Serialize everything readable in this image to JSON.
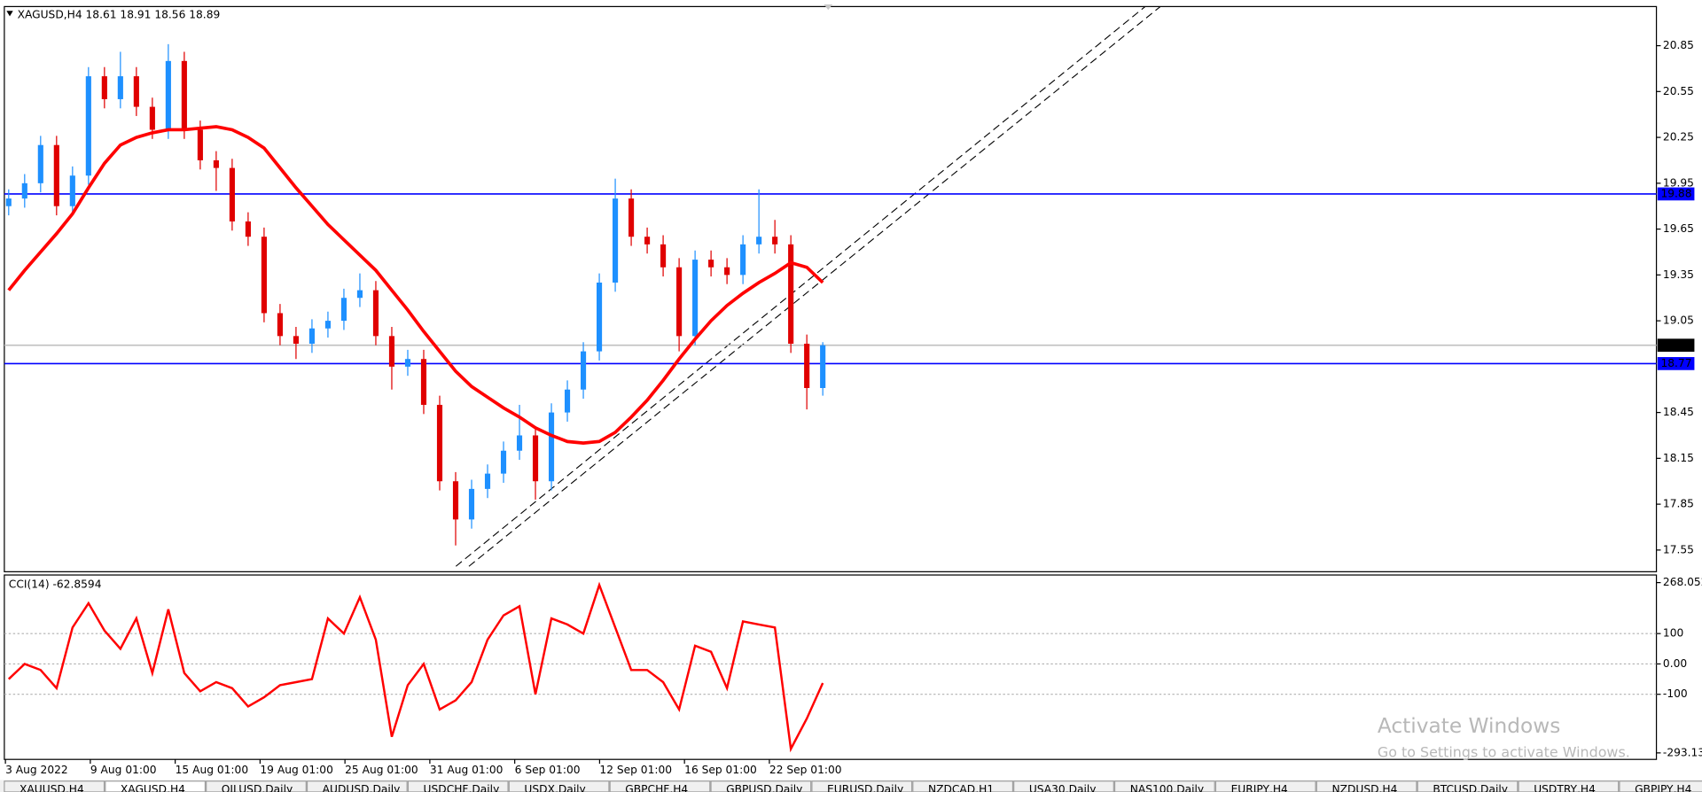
{
  "chart_data": [
    {
      "type": "candlestick",
      "title": "XAGUSD,H4  18.61 18.91 18.56 18.89",
      "open": [
        19.8,
        19.85,
        19.95,
        20.2,
        19.8,
        20.0,
        20.65,
        20.5,
        20.65,
        20.45,
        20.3,
        20.75,
        20.3,
        20.1,
        20.05,
        19.7,
        19.6,
        19.1,
        18.95,
        18.9,
        19.0,
        19.05,
        19.2,
        19.25,
        18.95,
        18.75,
        18.8,
        18.5,
        18.0,
        17.75,
        17.95,
        18.05,
        18.2,
        18.3,
        18.0,
        18.45,
        18.6,
        18.85,
        19.3,
        19.85,
        19.6,
        19.55,
        19.4,
        18.95,
        19.45,
        19.4,
        19.35,
        19.55,
        19.6,
        19.55,
        18.9,
        18.61
      ],
      "high": [
        19.91,
        20.01,
        20.26,
        20.26,
        20.06,
        20.71,
        20.71,
        20.81,
        20.71,
        20.51,
        20.86,
        20.81,
        20.36,
        20.16,
        20.11,
        19.76,
        19.66,
        19.16,
        19.01,
        19.06,
        19.11,
        19.26,
        19.36,
        19.31,
        19.01,
        18.86,
        18.86,
        18.56,
        18.06,
        18.01,
        18.11,
        18.26,
        18.5,
        18.36,
        18.51,
        18.66,
        18.91,
        19.36,
        19.98,
        19.91,
        19.66,
        19.61,
        19.46,
        19.51,
        19.51,
        19.46,
        19.61,
        19.91,
        19.71,
        19.61,
        18.96,
        18.91
      ],
      "low": [
        19.74,
        19.79,
        19.89,
        19.74,
        19.74,
        19.94,
        20.44,
        20.44,
        20.39,
        20.24,
        20.24,
        20.24,
        20.04,
        19.9,
        19.64,
        19.54,
        19.04,
        18.89,
        18.8,
        18.84,
        18.94,
        18.99,
        19.14,
        18.89,
        18.6,
        18.69,
        18.44,
        17.94,
        17.58,
        17.69,
        17.89,
        17.99,
        18.14,
        17.88,
        17.94,
        18.39,
        18.54,
        18.79,
        19.24,
        19.54,
        19.49,
        19.34,
        18.85,
        18.89,
        19.34,
        19.29,
        19.29,
        19.49,
        19.49,
        18.84,
        18.47,
        18.56
      ],
      "close": [
        19.85,
        19.95,
        20.2,
        19.8,
        20.0,
        20.65,
        20.5,
        20.65,
        20.45,
        20.3,
        20.75,
        20.3,
        20.1,
        20.05,
        19.7,
        19.6,
        19.1,
        18.95,
        18.9,
        19.0,
        19.05,
        19.2,
        19.25,
        18.95,
        18.75,
        18.8,
        18.5,
        18.0,
        17.75,
        17.95,
        18.05,
        18.2,
        18.3,
        18.0,
        18.45,
        18.6,
        18.85,
        19.3,
        19.85,
        19.6,
        19.55,
        19.4,
        18.95,
        19.45,
        19.4,
        19.35,
        19.55,
        19.6,
        19.55,
        18.9,
        18.61,
        18.89
      ],
      "up_color": "#1e90ff",
      "down_color": "#e00000",
      "ma": {
        "color": "#ff0000",
        "values": [
          19.25,
          19.38,
          19.5,
          19.62,
          19.75,
          19.92,
          20.08,
          20.2,
          20.25,
          20.28,
          20.3,
          20.3,
          20.31,
          20.32,
          20.3,
          20.25,
          20.18,
          20.05,
          19.92,
          19.8,
          19.68,
          19.58,
          19.48,
          19.38,
          19.25,
          19.12,
          18.98,
          18.85,
          18.72,
          18.62,
          18.55,
          18.48,
          18.42,
          18.35,
          18.3,
          18.26,
          18.25,
          18.26,
          18.32,
          18.42,
          18.53,
          18.66,
          18.8,
          18.93,
          19.05,
          19.15,
          19.23,
          19.3,
          19.36,
          19.43,
          19.4,
          19.3
        ]
      },
      "hlines": [
        {
          "value": 19.88,
          "color": "#0000ff",
          "label_color": "#0000ff"
        },
        {
          "value": 18.77,
          "color": "#0000ff",
          "label_color": "#0000ff"
        },
        {
          "value": 18.89,
          "color": "#c0c0c0",
          "label_color": "#000000"
        }
      ],
      "ylim": [
        17.408,
        21.106
      ],
      "yticks": [
        17.55,
        17.85,
        18.15,
        18.45,
        19.05,
        19.35,
        19.65,
        19.95,
        20.25,
        20.55,
        20.85
      ]
    },
    {
      "type": "line",
      "title": "CCI(14) -62.8594",
      "color": "#ff0000",
      "values": [
        -50,
        0,
        -20,
        -80,
        120,
        200,
        110,
        50,
        150,
        -30,
        180,
        -30,
        -90,
        -60,
        -80,
        -140,
        -110,
        -70,
        -60,
        -50,
        150,
        100,
        220,
        80,
        -240,
        -70,
        0,
        -150,
        -120,
        -60,
        80,
        160,
        190,
        -100,
        150,
        130,
        100,
        260,
        120,
        -20,
        -20,
        -60,
        -150,
        60,
        40,
        -80,
        140,
        130,
        120,
        -280,
        -180,
        -62.8594
      ],
      "ylim": [
        -293.138,
        268.052
      ],
      "yticks": [
        -293.138,
        -100,
        {
          "value": 0,
          "label": "0.00"
        },
        100,
        268.052
      ],
      "time_labels": [
        "3 Aug 2022",
        "9 Aug 01:00",
        "15 Aug 01:00",
        "19 Aug 01:00",
        "25 Aug 01:00",
        "31 Aug 01:00",
        "6 Sep 01:00",
        "12 Sep 01:00",
        "16 Sep 01:00",
        "22 Sep 01:00"
      ]
    }
  ],
  "tabs": [
    "XAUUSD,H4",
    "XAGUSD,H4",
    "OILUSD,Daily",
    "AUDUSD,Daily",
    "USDCHF,Daily",
    "USDX,Daily",
    "GBPCHF,H4",
    "GBPUSD,Daily",
    "EURUSD,Daily",
    "NZDCAD,H1",
    "USA30,Daily",
    "NAS100,Daily",
    "EURJPY,H4",
    "NZDUSD,H4",
    "BTCUSD,Daily",
    "USDTRY,H4",
    "GBPJPY,H4"
  ],
  "active_tab": 1,
  "watermark": {
    "title": "Activate Windows",
    "text": "Go to Settings to activate Windows."
  }
}
